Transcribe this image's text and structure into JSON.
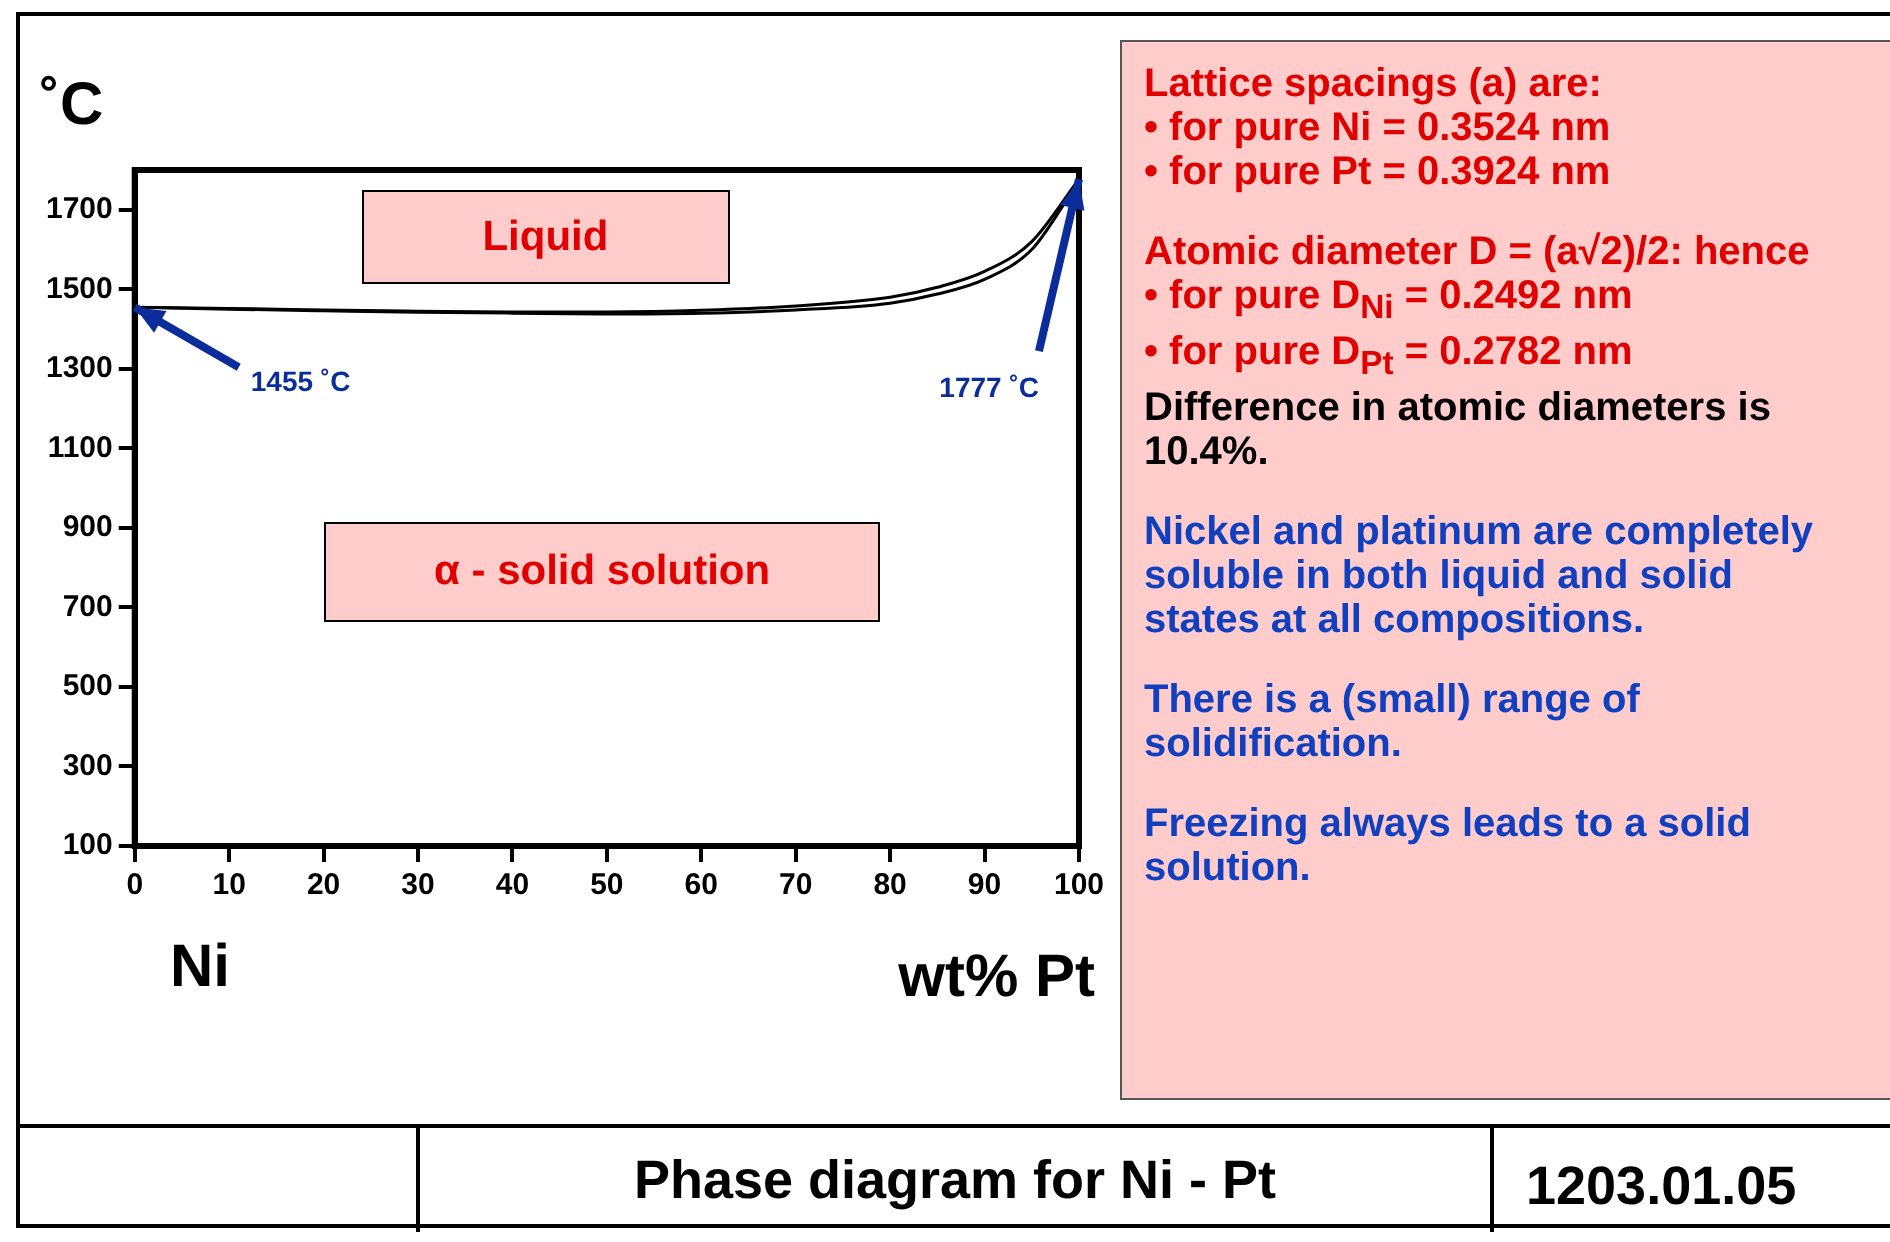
{
  "chart_data": {
    "type": "line",
    "title": "Phase diagram for Ni - Pt",
    "xlabel": "wt% Pt",
    "ylabel": "˚C",
    "x": [
      0,
      10,
      20,
      30,
      40,
      50,
      60,
      70,
      80,
      85,
      90,
      95,
      100
    ],
    "series": [
      {
        "color": "#000000",
        "values": [
          1455,
          1452,
          1448,
          1445,
          1443,
          1443,
          1447,
          1458,
          1480,
          1505,
          1545,
          1620,
          1777
        ]
      },
      {
        "color": "#000000",
        "x": [
          2,
          10,
          20,
          30,
          40,
          50,
          60,
          70,
          80,
          85,
          90,
          95,
          99
        ],
        "values": [
          1454,
          1450,
          1446,
          1442,
          1440,
          1438,
          1440,
          1448,
          1465,
          1488,
          1525,
          1600,
          1735
        ]
      }
    ],
    "xlim": [
      0,
      100
    ],
    "xticks": [
      0,
      10,
      20,
      30,
      40,
      50,
      60,
      70,
      80,
      90,
      100
    ],
    "ylim": [
      100,
      1800
    ],
    "yticks": [
      100,
      300,
      500,
      700,
      900,
      1100,
      1300,
      1500,
      1700
    ],
    "grid": false,
    "legend": false,
    "marker": "none",
    "line_style": "solid",
    "annotations": [
      "Liquid",
      "α - solid solution",
      {
        "text": "1455 ˚C",
        "x": 0,
        "y": 1455
      },
      {
        "text": "1777 ˚C",
        "x": 100,
        "y": 1777
      },
      "Ni",
      "Lattice spacings  (a) are:",
      "• for pure Ni =  0.3524 nm",
      "• for pure Pt =  0.3924 nm",
      "Atomic diameter D = (a√2)/2: hence",
      "• for pure D$_{Ni}$  =  0.2492 nm",
      "• for pure D$_{Pt}$  =  0.2782 nm",
      "Difference in atomic diameters is 10.4%.",
      "Nickel and platinum are completely soluble in both liquid and solid states at all compositions.",
      "There is a (small) range of solidification.",
      "Freezing always leads to a solid solution.",
      "1203.01.05"
    ]
  }
}
